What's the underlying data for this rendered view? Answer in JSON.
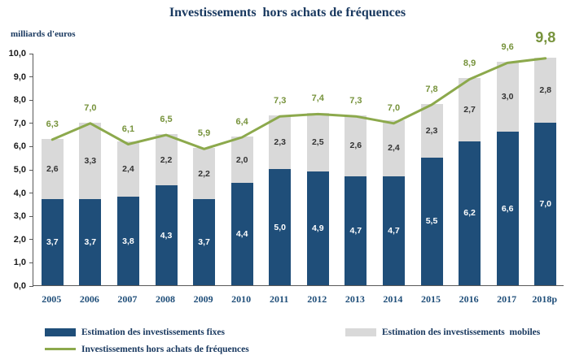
{
  "chart_data": {
    "type": "bar",
    "stacked": true,
    "title": "Investissements  hors achats de fréquences",
    "ylabel": "milliards d'euros",
    "xlabel": "",
    "ylim": [
      0,
      10
    ],
    "grid": false,
    "legend_position": "bottom",
    "categories": [
      "2005",
      "2006",
      "2007",
      "2008",
      "2009",
      "2010",
      "2011",
      "2012",
      "2013",
      "2014",
      "2015",
      "2016",
      "2017",
      "2018p"
    ],
    "y_ticks": [
      "0,0",
      "1,0",
      "2,0",
      "3,0",
      "4,0",
      "5,0",
      "6,0",
      "7,0",
      "8,0",
      "9,0",
      "10,0"
    ],
    "series": [
      {
        "name": "Estimation des investissements fixes",
        "color": "#1F4E79",
        "values": [
          3.7,
          3.7,
          3.8,
          4.3,
          3.7,
          4.4,
          5.0,
          4.9,
          4.7,
          4.7,
          5.5,
          6.2,
          6.6,
          7.0
        ],
        "labels": [
          "3,7",
          "3,7",
          "3,8",
          "4,3",
          "3,7",
          "4,4",
          "5,0",
          "4,9",
          "4,7",
          "4,7",
          "5,5",
          "6,2",
          "6,6",
          "7,0"
        ]
      },
      {
        "name": "Estimation des investissements  mobiles",
        "color": "#D9D9D9",
        "values": [
          2.6,
          3.3,
          2.4,
          2.2,
          2.2,
          2.0,
          2.3,
          2.5,
          2.6,
          2.4,
          2.3,
          2.7,
          3.0,
          2.8
        ],
        "labels": [
          "2,6",
          "3,3",
          "2,4",
          "2,2",
          "2,2",
          "2,0",
          "2,3",
          "2,5",
          "2,6",
          "2,4",
          "2,3",
          "2,7",
          "3,0",
          "2,8"
        ]
      }
    ],
    "line": {
      "name": "Investissements hors achats de fréquences",
      "color": "#8CA94C",
      "label_color": "#77933C",
      "values": [
        6.3,
        7.0,
        6.1,
        6.5,
        5.9,
        6.4,
        7.3,
        7.4,
        7.3,
        7.0,
        7.8,
        8.9,
        9.6,
        9.8
      ],
      "labels": [
        "6,3",
        "7,0",
        "6,1",
        "6,5",
        "5,9",
        "6,4",
        "7,3",
        "7,4",
        "7,3",
        "7,0",
        "7,8",
        "8,9",
        "9,6",
        "9,8"
      ]
    }
  }
}
